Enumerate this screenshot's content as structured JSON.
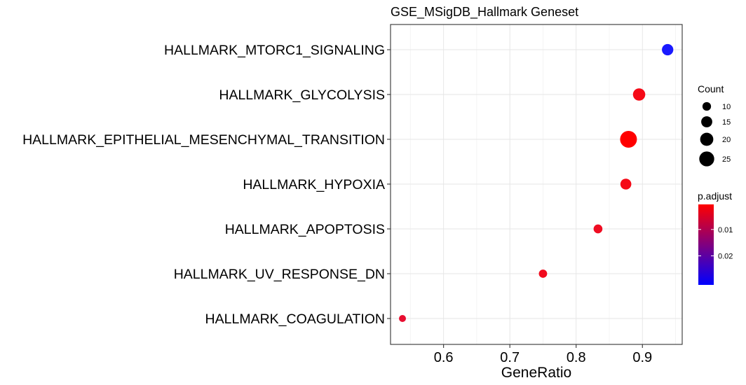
{
  "chart_data": {
    "type": "scatter",
    "title": "GSE_MSigDB_Hallmark Geneset",
    "xlabel": "GeneRatio",
    "ylabel": "",
    "xlim": [
      0.52,
      0.96
    ],
    "x_ticks": [
      0.6,
      0.7,
      0.8,
      0.9
    ],
    "x_tick_labels": [
      "0.6",
      "0.7",
      "0.8",
      "0.9"
    ],
    "grid": true,
    "categories": [
      "HALLMARK_MTORC1_SIGNALING",
      "HALLMARK_GLYCOLYSIS",
      "HALLMARK_EPITHELIAL_MESENCHYMAL_TRANSITION",
      "HALLMARK_HYPOXIA",
      "HALLMARK_APOPTOSIS",
      "HALLMARK_UV_RESPONSE_DN",
      "HALLMARK_COAGULATION"
    ],
    "points": [
      {
        "term": "HALLMARK_MTORC1_SIGNALING",
        "gene_ratio": 0.938,
        "count": 15,
        "p_adjust": 0.03,
        "color": "#1a1aff"
      },
      {
        "term": "HALLMARK_GLYCOLYSIS",
        "gene_ratio": 0.895,
        "count": 17,
        "p_adjust": 0.002,
        "color": "#f50a17"
      },
      {
        "term": "HALLMARK_EPITHELIAL_MESENCHYMAL_TRANSITION",
        "gene_ratio": 0.879,
        "count": 29,
        "p_adjust": 0.0005,
        "color": "#ff0000"
      },
      {
        "term": "HALLMARK_HYPOXIA",
        "gene_ratio": 0.875,
        "count": 14,
        "p_adjust": 0.002,
        "color": "#f50a17"
      },
      {
        "term": "HALLMARK_APOPTOSIS",
        "gene_ratio": 0.833,
        "count": 10,
        "p_adjust": 0.003,
        "color": "#ef0d22"
      },
      {
        "term": "HALLMARK_UV_RESPONSE_DN",
        "gene_ratio": 0.75,
        "count": 9,
        "p_adjust": 0.002,
        "color": "#f10b1e"
      },
      {
        "term": "HALLMARK_COAGULATION",
        "gene_ratio": 0.538,
        "count": 7,
        "p_adjust": 0.005,
        "color": "#e80e30"
      }
    ],
    "legend_size": {
      "title": "Count",
      "breaks": [
        10,
        15,
        20,
        25
      ],
      "labels": [
        "10",
        "15",
        "20",
        "25"
      ],
      "position": "right"
    },
    "legend_color": {
      "title": "p.adjust",
      "low_color": "#ff0000",
      "high_color": "#0000ff",
      "range": [
        0.0005,
        0.031
      ],
      "breaks": [
        0.01,
        0.02
      ],
      "labels": [
        "0.01",
        "0.02"
      ],
      "position": "right"
    }
  }
}
